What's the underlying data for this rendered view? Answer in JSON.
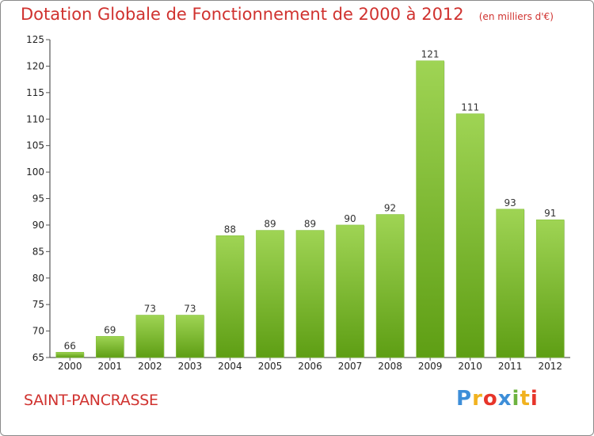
{
  "header": {
    "title": "Dotation Globale de Fonctionnement de 2000 à 2012",
    "subtitle": "(en milliers d'€)"
  },
  "footer": {
    "commune": "SAINT-PANCRASSE",
    "logo_letters": [
      "P",
      "r",
      "o",
      "x",
      "i",
      "t",
      "i"
    ]
  },
  "colors": {
    "title": "#d0322f",
    "bar_top": "#9fd454",
    "bar_bottom": "#5e9e14",
    "axis": "#333333",
    "grid_tick": "#555555",
    "logo": [
      "#3d8ed8",
      "#f1b21f",
      "#e7352a",
      "#3d8ed8",
      "#6db33f",
      "#f1b21f",
      "#e7352a"
    ]
  },
  "chart_data": {
    "type": "bar",
    "categories": [
      "2000",
      "2001",
      "2002",
      "2003",
      "2004",
      "2005",
      "2006",
      "2007",
      "2008",
      "2009",
      "2010",
      "2011",
      "2012"
    ],
    "values": [
      66,
      69,
      73,
      73,
      88,
      89,
      89,
      90,
      92,
      121,
      111,
      93,
      91
    ],
    "title": "Dotation Globale de Fonctionnement de 2000 à 2012",
    "subtitle": "(en milliers d'€)",
    "xlabel": "",
    "ylabel": "",
    "ylim": [
      65,
      125
    ],
    "yticks": [
      65,
      70,
      75,
      80,
      85,
      90,
      95,
      100,
      105,
      110,
      115,
      120,
      125
    ],
    "grid": false,
    "legend": "none"
  }
}
